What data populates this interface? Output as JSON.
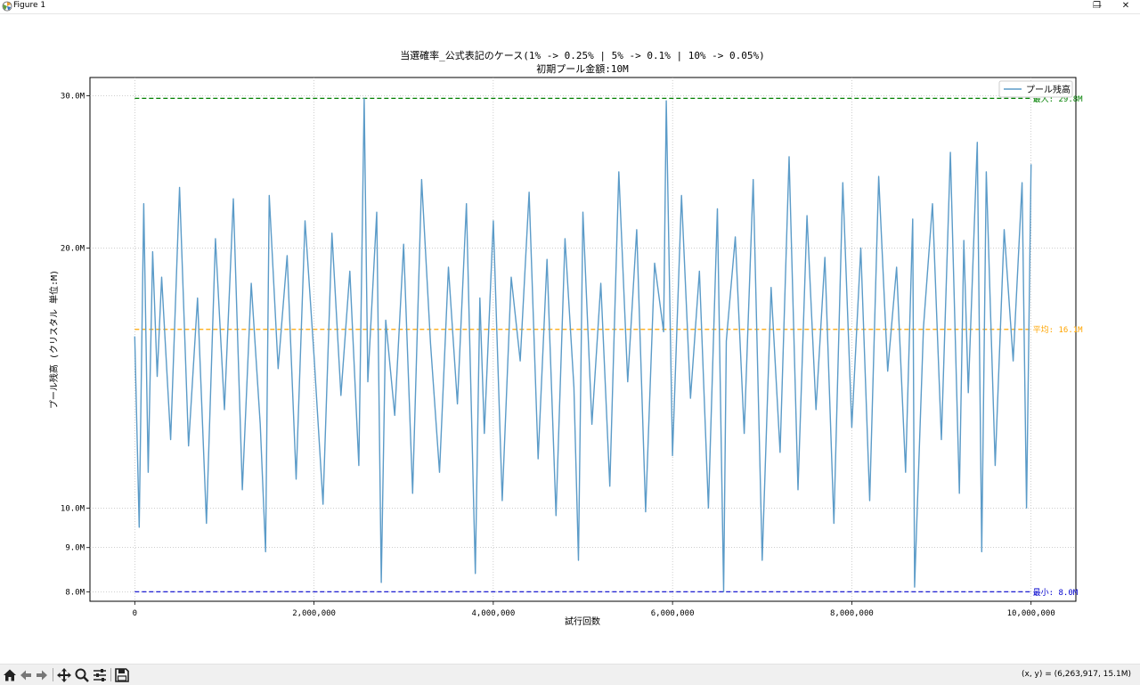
{
  "window": {
    "title": "Figure 1",
    "minimize_label": "—",
    "restore_label": "❐",
    "close_label": "✕"
  },
  "toolbar": {
    "buttons": [
      "home-icon",
      "back-arrow-icon",
      "forward-arrow-icon",
      "pan-icon",
      "zoom-icon",
      "configure-subplots-icon",
      "save-icon"
    ],
    "coords_text": "(x, y) = (6,263,917, 15.1M)"
  },
  "colors": {
    "series": "#5b9bc8",
    "max_line": "#008000",
    "avg_line": "#ffa500",
    "min_line": "#0000cd"
  },
  "chart_data": {
    "type": "line",
    "title": "当選確率_公式表記のケース(1% -> 0.25% | 5% -> 0.1% | 10% -> 0.05%)",
    "subtitle": "初期プール金額:10M",
    "xlabel": "試行回数",
    "ylabel": "プール残高 (クリスタル 単位:M)",
    "xlim": [
      -500000,
      10500000
    ],
    "ylim": [
      7.8,
      31.5
    ],
    "y_scale": "log",
    "grid": true,
    "legend": {
      "position": "top-right",
      "entries": [
        "プール残高"
      ]
    },
    "x_ticks": [
      0,
      2000000,
      4000000,
      6000000,
      8000000,
      10000000
    ],
    "x_tick_labels": [
      "0",
      "2,000,000",
      "4,000,000",
      "6,000,000",
      "8,000,000",
      "10,000,000"
    ],
    "y_ticks": [
      8,
      9,
      10,
      20,
      30
    ],
    "y_tick_labels": [
      "8.0M",
      "9.0M",
      "10.0M",
      "20.0M",
      "30.0M"
    ],
    "series": [
      {
        "name": "プール残高",
        "x": [
          0,
          50000,
          100000,
          150000,
          200000,
          250000,
          300000,
          400000,
          500000,
          600000,
          700000,
          800000,
          900000,
          1000000,
          1100000,
          1200000,
          1300000,
          1400000,
          1460000,
          1500000,
          1600000,
          1700000,
          1800000,
          1900000,
          2000000,
          2100000,
          2200000,
          2300000,
          2400000,
          2500000,
          2560000,
          2600000,
          2700000,
          2750000,
          2800000,
          2900000,
          3000000,
          3100000,
          3200000,
          3300000,
          3400000,
          3500000,
          3600000,
          3700000,
          3800000,
          3850000,
          3900000,
          4000000,
          4100000,
          4200000,
          4300000,
          4400000,
          4500000,
          4600000,
          4700000,
          4800000,
          4900000,
          4950000,
          5000000,
          5100000,
          5200000,
          5300000,
          5400000,
          5500000,
          5600000,
          5700000,
          5800000,
          5900000,
          5930000,
          6000000,
          6100000,
          6200000,
          6300000,
          6400000,
          6500000,
          6570000,
          6600000,
          6700000,
          6800000,
          6900000,
          7000000,
          7100000,
          7200000,
          7300000,
          7400000,
          7500000,
          7600000,
          7700000,
          7800000,
          7900000,
          8000000,
          8100000,
          8200000,
          8300000,
          8400000,
          8500000,
          8600000,
          8680000,
          8700000,
          8800000,
          8900000,
          9000000,
          9100000,
          9200000,
          9250000,
          9300000,
          9400000,
          9450000,
          9500000,
          9600000,
          9700000,
          9800000,
          9900000,
          9950000,
          10000000
        ],
        "values": [
          15.8,
          9.5,
          22.5,
          11.0,
          19.8,
          14.2,
          18.5,
          12.0,
          23.5,
          11.8,
          17.5,
          9.6,
          20.5,
          13.0,
          22.8,
          10.5,
          18.2,
          12.5,
          8.9,
          23.0,
          14.5,
          19.6,
          10.8,
          21.5,
          15.0,
          10.1,
          20.8,
          13.5,
          18.8,
          11.2,
          29.8,
          14.0,
          22.0,
          8.2,
          16.5,
          12.8,
          20.2,
          10.4,
          24.0,
          15.5,
          11.0,
          19.0,
          13.2,
          22.5,
          8.4,
          17.5,
          12.2,
          21.5,
          10.2,
          18.5,
          14.8,
          23.2,
          11.4,
          19.4,
          9.8,
          20.5,
          13.8,
          8.7,
          22.0,
          12.5,
          18.2,
          10.6,
          24.5,
          14.0,
          21.0,
          9.9,
          19.2,
          16.0,
          29.6,
          11.5,
          23.0,
          13.4,
          18.8,
          10.0,
          22.2,
          8.0,
          15.6,
          20.6,
          12.2,
          24.0,
          8.7,
          18.0,
          11.6,
          25.5,
          10.5,
          21.8,
          13.0,
          19.5,
          9.6,
          23.8,
          12.4,
          20.0,
          10.2,
          24.2,
          14.4,
          19.0,
          11.0,
          21.6,
          8.1,
          16.2,
          22.5,
          12.0,
          25.8,
          10.4,
          20.4,
          13.6,
          26.5,
          8.9,
          24.5,
          11.2,
          21.0,
          14.8,
          23.8,
          10.0,
          25.0
        ]
      }
    ],
    "reference_lines": [
      {
        "name": "最大",
        "value": 29.8,
        "label": "最大: 29.8M"
      },
      {
        "name": "平均",
        "value": 16.1,
        "label": "平均: 16.1M"
      },
      {
        "name": "最小",
        "value": 8.0,
        "label": "最小: 8.0M"
      }
    ]
  }
}
